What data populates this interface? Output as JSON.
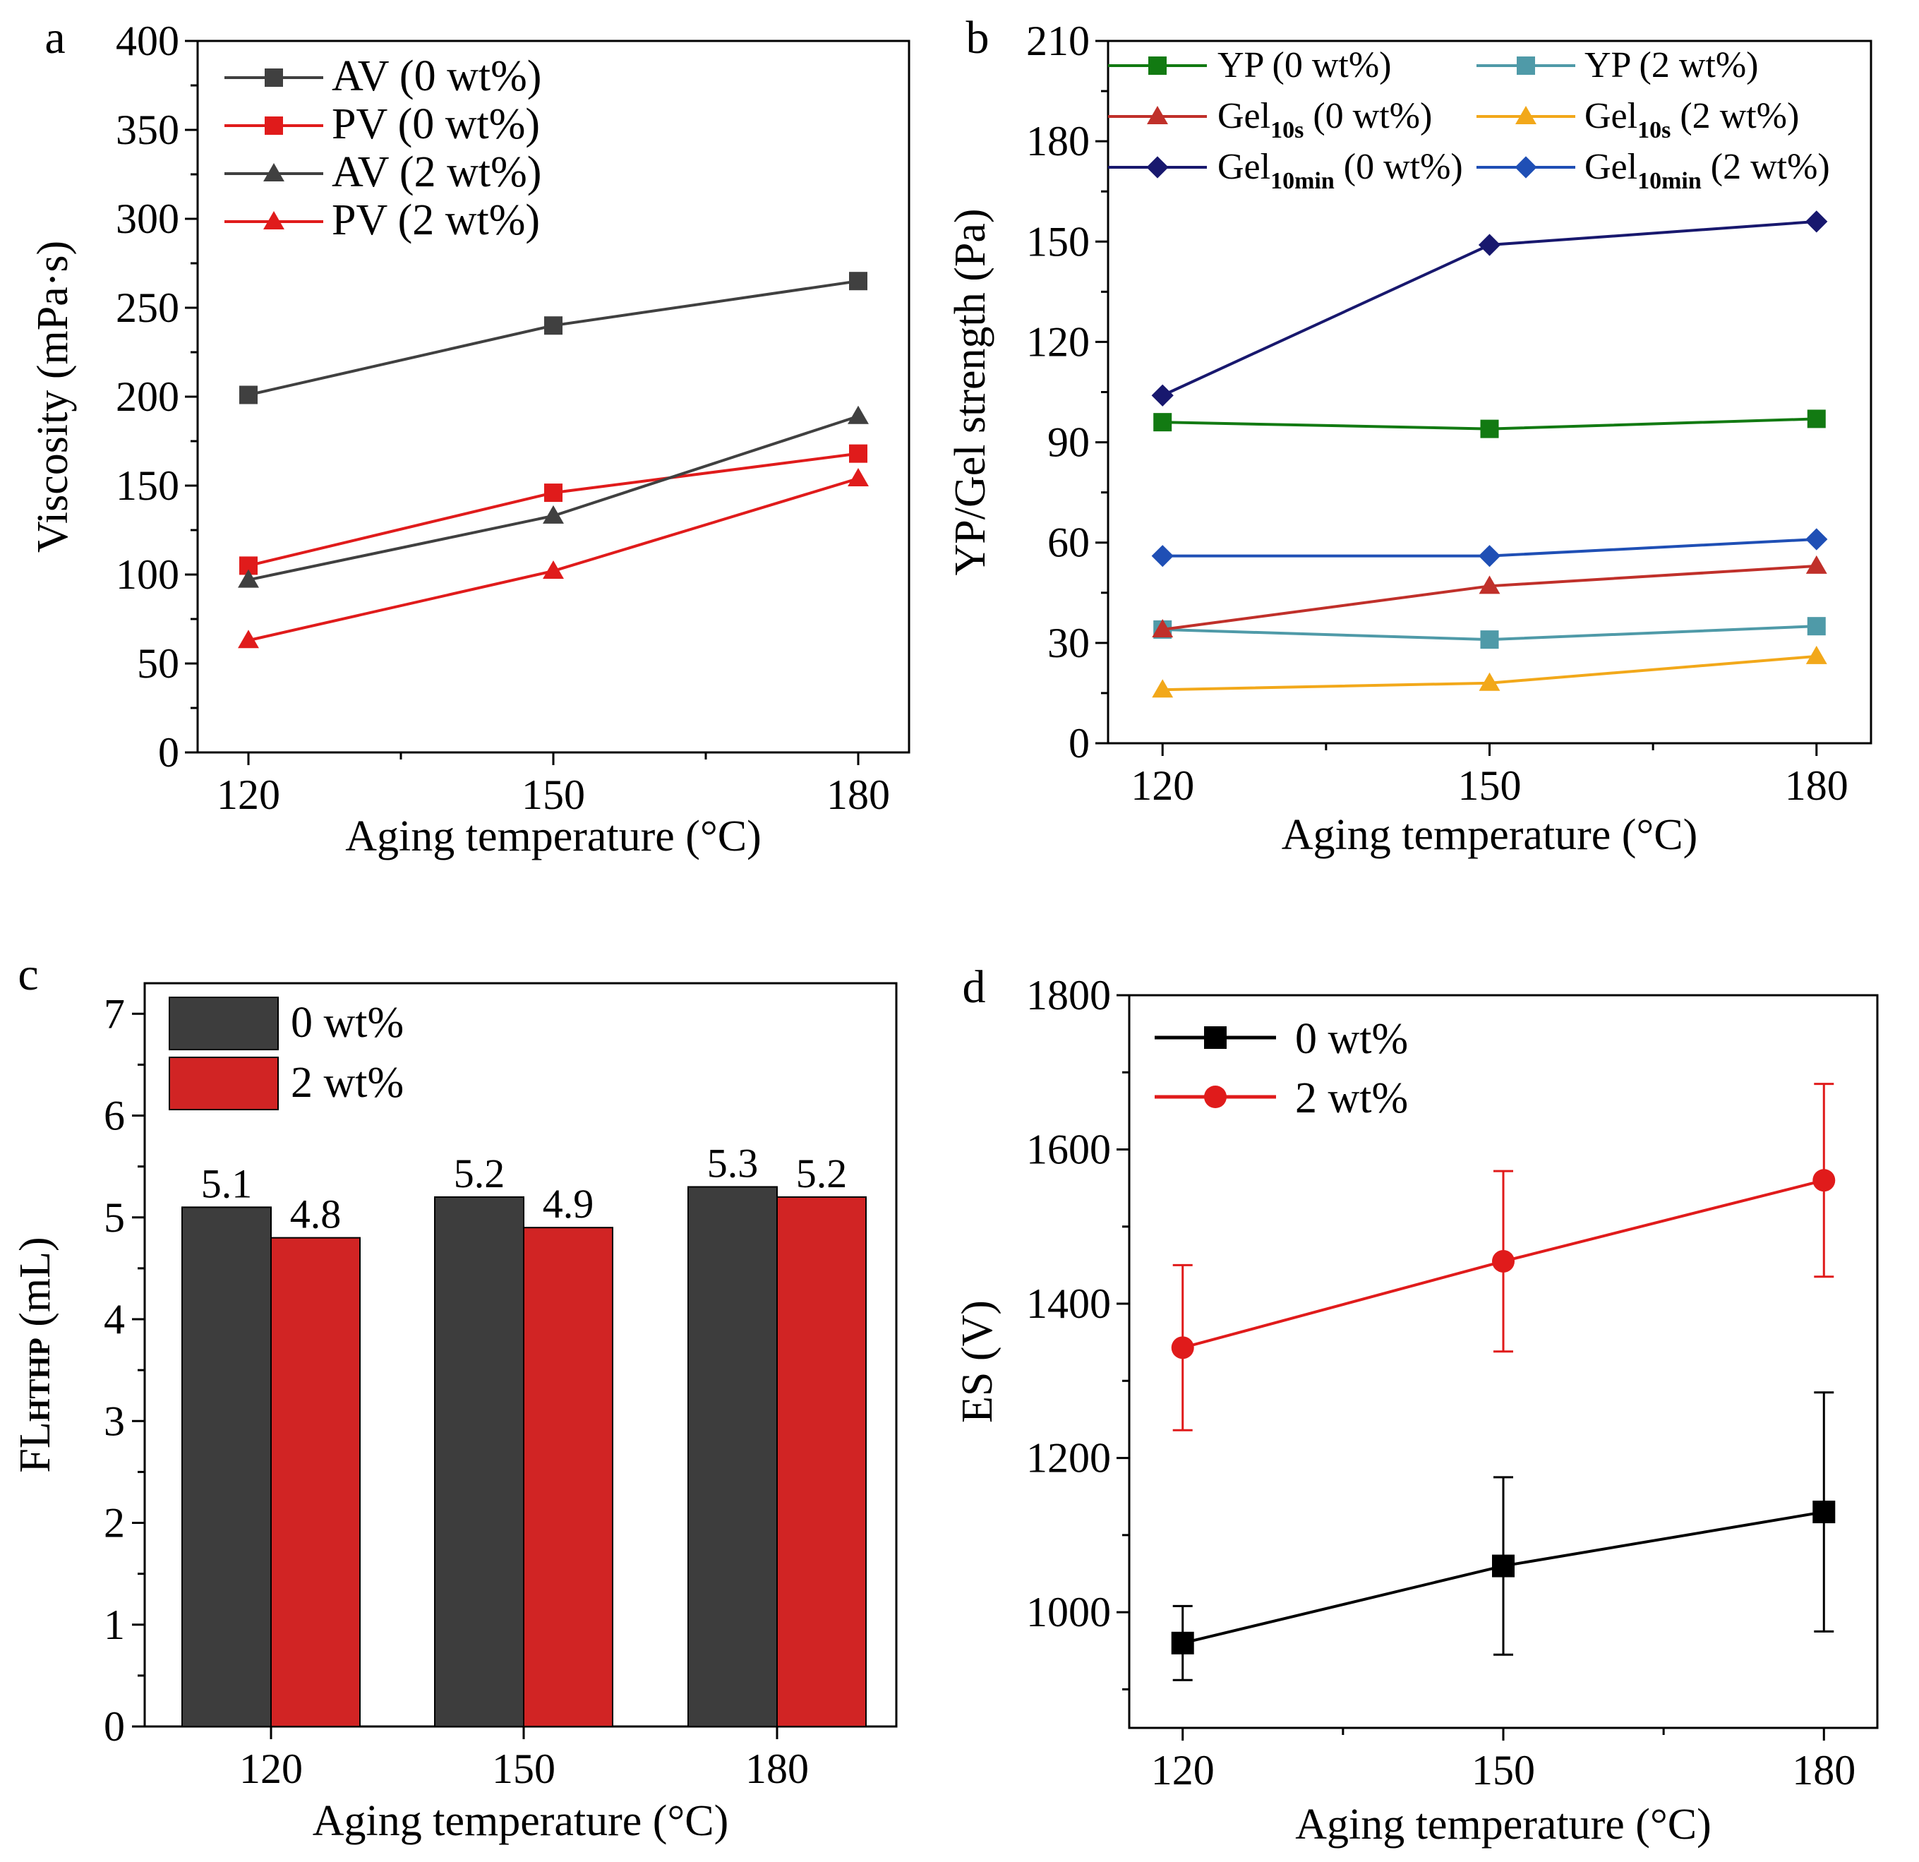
{
  "colors": {
    "dark_gray": "#404040",
    "red": "#e01b1b",
    "green": "#127a12",
    "teal": "#4f9aa8",
    "dark_red": "#c0302a",
    "orange": "#f2a81a",
    "navy": "#18186e",
    "blue": "#1f4fb5",
    "black": "#000000",
    "bar_dark": "#3d3d3d",
    "bar_red": "#d12424"
  },
  "chart_data": [
    {
      "panel": "a",
      "type": "line",
      "xlabel": "Aging temperature (°C)",
      "ylabel": "Viscosity (mPa·s)",
      "x": [
        120,
        150,
        180
      ],
      "xlim": [
        115,
        185
      ],
      "ylim": [
        0,
        400
      ],
      "yticks": [
        0,
        50,
        100,
        150,
        200,
        250,
        300,
        350,
        400
      ],
      "legend_position": "top-left",
      "series": [
        {
          "name": "AV (0 wt%)",
          "marker": "square",
          "color_key": "dark_gray",
          "values": [
            201,
            240,
            265
          ]
        },
        {
          "name": "PV  (0 wt%)",
          "marker": "square",
          "color_key": "red",
          "values": [
            105,
            146,
            168
          ]
        },
        {
          "name": "AV (2 wt%)",
          "marker": "triangle",
          "color_key": "dark_gray",
          "values": [
            97,
            133,
            189
          ]
        },
        {
          "name": "PV  (2 wt%)",
          "marker": "triangle",
          "color_key": "red",
          "values": [
            63,
            102,
            154
          ]
        }
      ]
    },
    {
      "panel": "b",
      "type": "line",
      "xlabel": "Aging temperature (°C)",
      "ylabel": "YP/Gel strength (Pa)",
      "x": [
        120,
        150,
        180
      ],
      "xlim": [
        115,
        185
      ],
      "ylim": [
        0,
        210
      ],
      "yticks": [
        0,
        30,
        60,
        90,
        120,
        150,
        180,
        210
      ],
      "legend_position": "top",
      "series": [
        {
          "name": "YP (0 wt%)",
          "label_main": "YP",
          "label_sub": "",
          "label_rest": " (0 wt%)",
          "marker": "square",
          "color_key": "green",
          "values": [
            96,
            94,
            97
          ]
        },
        {
          "name": "YP (2 wt%)",
          "label_main": "YP",
          "label_sub": "",
          "label_rest": " (2 wt%)",
          "marker": "square",
          "color_key": "teal",
          "values": [
            34,
            31,
            35
          ]
        },
        {
          "name": "Gel10s (0 wt%)",
          "label_main": "Gel",
          "label_sub": "10s",
          "label_rest": " (0 wt%)",
          "marker": "triangle",
          "color_key": "dark_red",
          "values": [
            34,
            47,
            53
          ]
        },
        {
          "name": "Gel10s (2 wt%)",
          "label_main": "Gel",
          "label_sub": "10s",
          "label_rest": " (2 wt%)",
          "marker": "triangle",
          "color_key": "orange",
          "values": [
            16,
            18,
            26
          ]
        },
        {
          "name": "Gel10min (0 wt%)",
          "label_main": "Gel",
          "label_sub": "10min",
          "label_rest": " (0 wt%)",
          "marker": "diamond",
          "color_key": "navy",
          "values": [
            104,
            149,
            156
          ]
        },
        {
          "name": "Gel10min (2 wt%)",
          "label_main": "Gel",
          "label_sub": "10min",
          "label_rest": " (2 wt%)",
          "marker": "diamond",
          "color_key": "blue",
          "values": [
            56,
            56,
            61
          ]
        }
      ]
    },
    {
      "panel": "c",
      "type": "bar",
      "xlabel": "Aging temperature (°C)",
      "ylabel_main": "FL",
      "ylabel_sub": "HTHP",
      "ylabel_rest": " (mL)",
      "categories": [
        "120",
        "150",
        "180"
      ],
      "ylim": [
        0,
        7.3
      ],
      "yticks": [
        0,
        1,
        2,
        3,
        4,
        5,
        6,
        7
      ],
      "legend_position": "top-left",
      "series": [
        {
          "name": "0 wt%",
          "color_key": "bar_dark",
          "values": [
            5.1,
            5.2,
            5.3
          ],
          "labels": [
            "5.1",
            "5.2",
            "5.3"
          ]
        },
        {
          "name": "2 wt%",
          "color_key": "bar_red",
          "values": [
            4.8,
            4.9,
            5.2
          ],
          "labels": [
            "4.8",
            "4.9",
            "5.2"
          ]
        }
      ]
    },
    {
      "panel": "d",
      "type": "line",
      "xlabel": "Aging temperature (°C)",
      "ylabel": "ES (V)",
      "x": [
        120,
        150,
        180
      ],
      "xlim": [
        115,
        185
      ],
      "ylim": [
        850,
        1800
      ],
      "yticks": [
        1000,
        1200,
        1400,
        1600,
        1800
      ],
      "legend_position": "top-left",
      "series": [
        {
          "name": "0 wt%",
          "marker": "square",
          "color_key": "black",
          "values": [
            960,
            1060,
            1130
          ],
          "errors": [
            48,
            115,
            155
          ]
        },
        {
          "name": "2 wt%",
          "marker": "circle",
          "color_key": "red",
          "values": [
            1343,
            1455,
            1560
          ],
          "errors": [
            107,
            117,
            125
          ]
        }
      ]
    }
  ]
}
